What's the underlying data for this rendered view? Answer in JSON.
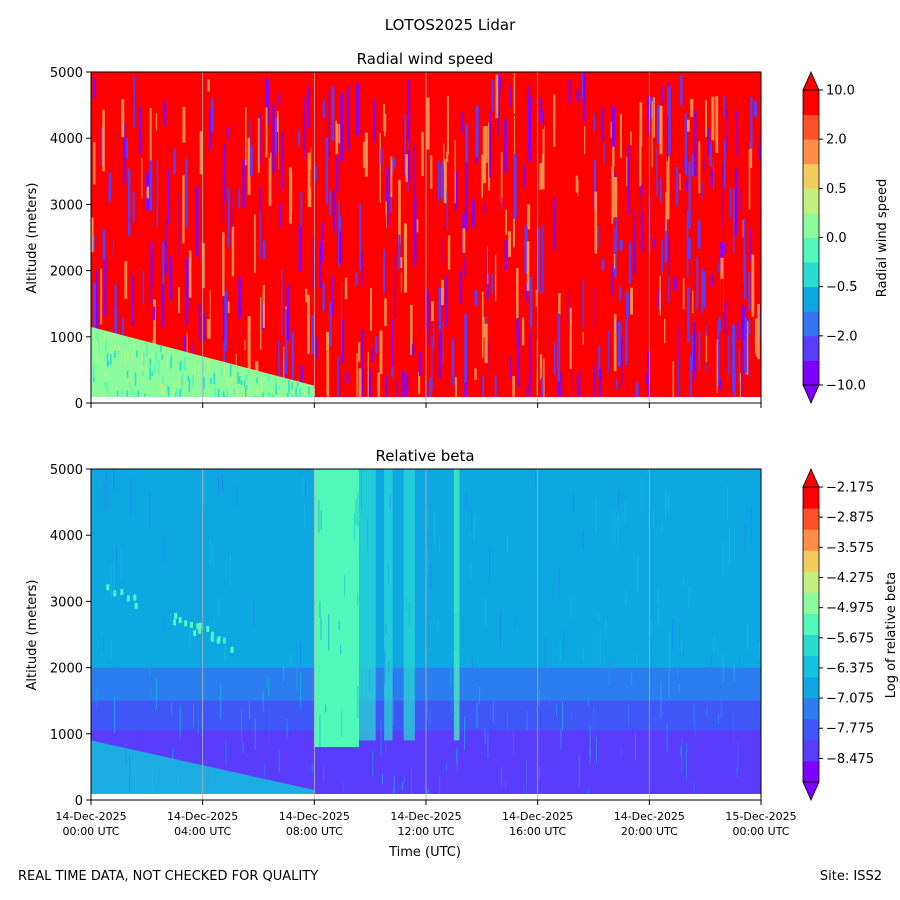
{
  "figure_title": "LOTOS2025 Lidar",
  "footer": {
    "left_text": "REAL TIME DATA, NOT CHECKED FOR QUALITY",
    "right_text": "Site: ISS2"
  },
  "chart_data": [
    {
      "type": "heatmap",
      "title": "Radial wind speed",
      "xlabel": "",
      "ylabel": "Altitude (meters)",
      "ylim": [
        0,
        5000
      ],
      "yticks": [
        "0",
        "1000",
        "2000",
        "3000",
        "4000",
        "5000"
      ],
      "ytick_values": [
        0,
        1000,
        2000,
        3000,
        4000,
        5000
      ],
      "xlim_hours": [
        0,
        24
      ],
      "grid": "vertical lines every 4 hours",
      "colorbar": {
        "label": "Radial wind speed",
        "tick_labels": [
          "10.0",
          "2.0",
          "0.5",
          "0.0",
          "−0.5",
          "−2.0",
          "−10.0"
        ],
        "colors_low_to_high": [
          "#8000ff",
          "#5a3cfd",
          "#3474f2",
          "#0da8e1",
          "#2adbd0",
          "#50f9b9",
          "#8cfb9c",
          "#c4ef80",
          "#f3cd5d",
          "#fe8e47",
          "#ff5028",
          "#ff0000"
        ],
        "extend": "both"
      },
      "description_regions": {
        "low_altitude_layer_top_m": [
          1150,
          150
        ],
        "dominant_upper_value_color": "#ff0000",
        "mixed_noise_colors": [
          "#5a3cfd",
          "#8000ff",
          "#ff0000",
          "#fe8e47"
        ]
      }
    },
    {
      "type": "heatmap",
      "title": "Relative beta",
      "xlabel": "Time (UTC)",
      "ylabel": "Altitude (meters)",
      "ylim": [
        0,
        5000
      ],
      "yticks": [
        "0",
        "1000",
        "2000",
        "3000",
        "4000",
        "5000"
      ],
      "ytick_values": [
        0,
        1000,
        2000,
        3000,
        4000,
        5000
      ],
      "xlim_hours": [
        0,
        24
      ],
      "xticks": [
        {
          "hour": 0,
          "date": "14-Dec-2025",
          "time": "00:00 UTC"
        },
        {
          "hour": 4,
          "date": "14-Dec-2025",
          "time": "04:00 UTC"
        },
        {
          "hour": 8,
          "date": "14-Dec-2025",
          "time": "08:00 UTC"
        },
        {
          "hour": 12,
          "date": "14-Dec-2025",
          "time": "12:00 UTC"
        },
        {
          "hour": 16,
          "date": "14-Dec-2025",
          "time": "16:00 UTC"
        },
        {
          "hour": 20,
          "date": "14-Dec-2025",
          "time": "20:00 UTC"
        },
        {
          "hour": 24,
          "date": "15-Dec-2025",
          "time": "00:00 UTC"
        }
      ],
      "grid": "vertical lines every 4 hours",
      "colorbar": {
        "label": "Log of relative beta",
        "tick_labels": [
          "−2.175",
          "−2.875",
          "−3.575",
          "−4.275",
          "−4.975",
          "−5.675",
          "−6.375",
          "−7.075",
          "−7.775",
          "−8.475"
        ],
        "colors_low_to_high": [
          "#8000ff",
          "#5a3cfd",
          "#3f57f7",
          "#2c7ef0",
          "#0da8e1",
          "#14c1de",
          "#2adbd0",
          "#50f9b9",
          "#8cfb9c",
          "#c4ef80",
          "#f3cd5d",
          "#fe8e47",
          "#ff5028",
          "#ff0000"
        ],
        "extend": "both"
      },
      "description_regions": {
        "background_color": "#0da8e1",
        "lower_layer_color": "#3f57f7",
        "boundary_layer_color": "#5a3cfd",
        "bright_column_hours": [
          8.0,
          9.6
        ],
        "bright_column_color": "#50f9b9"
      }
    }
  ]
}
